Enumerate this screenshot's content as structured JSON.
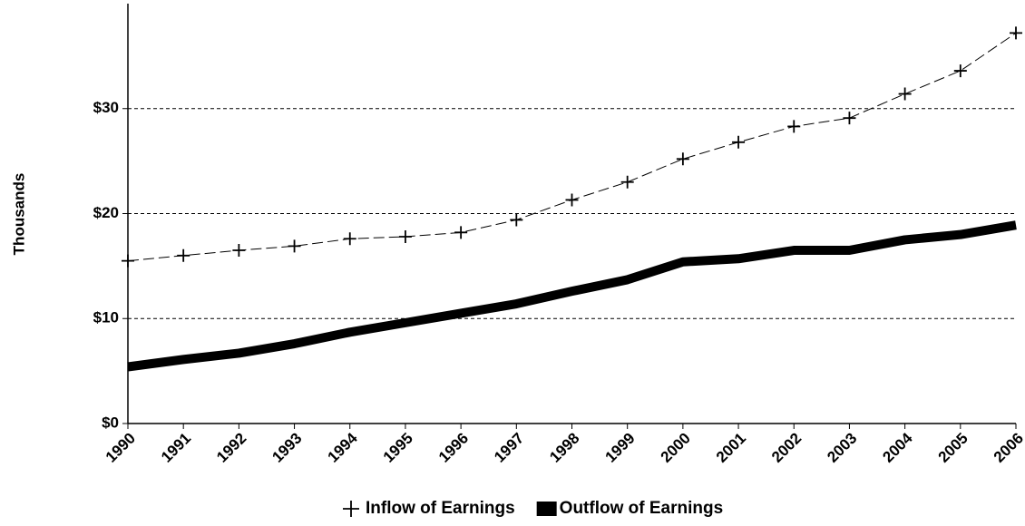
{
  "chart_data": {
    "type": "line",
    "y_axis_label": "Thousands",
    "categories": [
      "1990",
      "1991",
      "1992",
      "1993",
      "1994",
      "1995",
      "1996",
      "1997",
      "1998",
      "1999",
      "2000",
      "2001",
      "2002",
      "2003",
      "2004",
      "2005",
      "2006"
    ],
    "series": [
      {
        "name": "Inflow of Earnings",
        "color": "#000000",
        "line_style": "dashed",
        "marker": "+",
        "line_width": 1,
        "values": [
          15.5,
          16.0,
          16.5,
          16.9,
          17.6,
          17.8,
          18.2,
          19.4,
          21.3,
          23.0,
          25.2,
          26.8,
          28.3,
          29.1,
          31.4,
          33.6,
          37.2
        ]
      },
      {
        "name": "Outflow of Earnings",
        "color": "#000000",
        "line_style": "solid",
        "line_width": 10,
        "values": [
          5.4,
          6.1,
          6.7,
          7.6,
          8.7,
          9.6,
          10.5,
          11.4,
          12.6,
          13.7,
          15.4,
          15.7,
          16.5,
          16.5,
          17.5,
          18.0,
          18.9
        ]
      }
    ],
    "ylim": [
      0,
      40
    ],
    "yticks": [
      {
        "value": 0,
        "label": "$0"
      },
      {
        "value": 10,
        "label": "$10"
      },
      {
        "value": 20,
        "label": "$20"
      },
      {
        "value": 30,
        "label": "$30"
      }
    ],
    "grid": true,
    "legend": "bottom"
  }
}
